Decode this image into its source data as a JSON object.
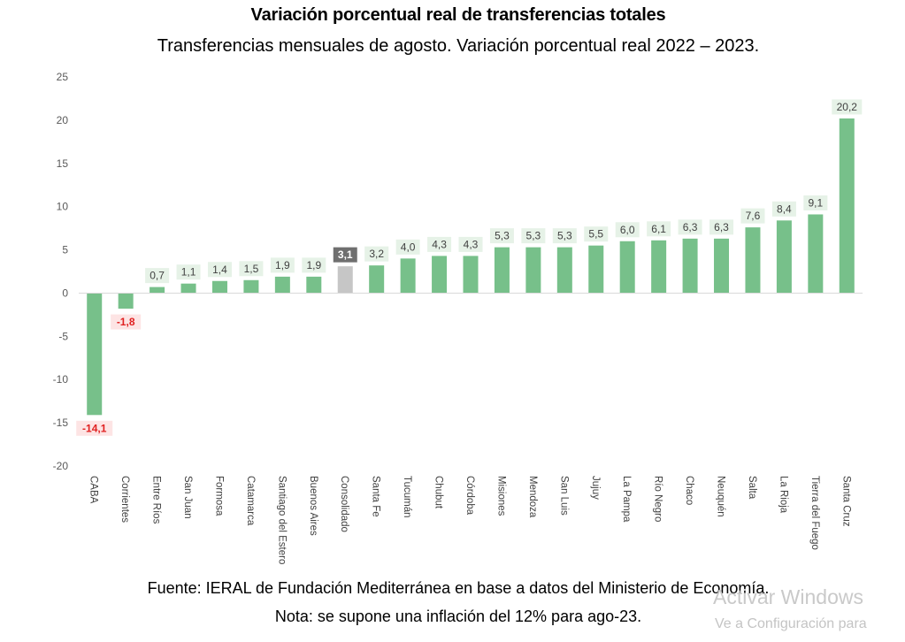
{
  "chart_data": {
    "type": "bar",
    "title": "Variación porcentual real de transferencias totales",
    "subtitle": "Transferencias mensuales de agosto. Variación porcentual real 2022 – 2023.",
    "categories": [
      "CABA",
      "Corrientes",
      "Entre Ríos",
      "San Juan",
      "Formosa",
      "Catamarca",
      "Santiago del Estero",
      "Buenos Aires",
      "Consolidado",
      "Santa Fe",
      "Tucumán",
      "Chubut",
      "Córdoba",
      "Misiones",
      "Mendoza",
      "San Luis",
      "Jujuy",
      "La Pampa",
      "Río Negro",
      "Chaco",
      "Neuquén",
      "Salta",
      "La Rioja",
      "Tierra del Fuego",
      "Santa Cruz"
    ],
    "values": [
      -14.1,
      -1.8,
      0.7,
      1.1,
      1.4,
      1.5,
      1.9,
      1.9,
      3.1,
      3.2,
      4.0,
      4.3,
      4.3,
      5.3,
      5.3,
      5.3,
      5.5,
      6.0,
      6.1,
      6.3,
      6.3,
      7.6,
      8.4,
      9.1,
      20.2
    ],
    "value_labels": [
      "-14,1",
      "-1,8",
      "0,7",
      "1,1",
      "1,4",
      "1,5",
      "1,9",
      "1,9",
      "3,1",
      "3,2",
      "4,0",
      "4,3",
      "4,3",
      "5,3",
      "5,3",
      "5,3",
      "5,5",
      "6,0",
      "6,1",
      "6,3",
      "6,3",
      "7,6",
      "8,4",
      "9,1",
      "20,2"
    ],
    "highlight_category": "Consolidado",
    "ylim": [
      -20,
      25
    ],
    "yticks": [
      -20,
      -15,
      -10,
      -5,
      0,
      5,
      10,
      15,
      20,
      25
    ],
    "grid": false,
    "legend": "none",
    "colors": {
      "positive_bar": "#77c08a",
      "highlight_bar": "#c6c6c6",
      "positive_label_bg": "#e6f2e7",
      "positive_label_text": "#404040",
      "highlight_label_bg": "#6f6f6f",
      "highlight_label_text": "#ffffff",
      "negative_label_bg": "#fde4e4",
      "negative_label_text": "#e02020",
      "axis": "#d9d9d9",
      "tick_text": "#595959"
    }
  },
  "footer": {
    "source": "Fuente: IERAL de Fundación Mediterránea en base a datos del Ministerio de Economía.",
    "note": "Nota: se supone una inflación del 12% para ago-23."
  },
  "watermark": {
    "title": "Activar Windows",
    "subtitle": "Ve a Configuración para"
  }
}
